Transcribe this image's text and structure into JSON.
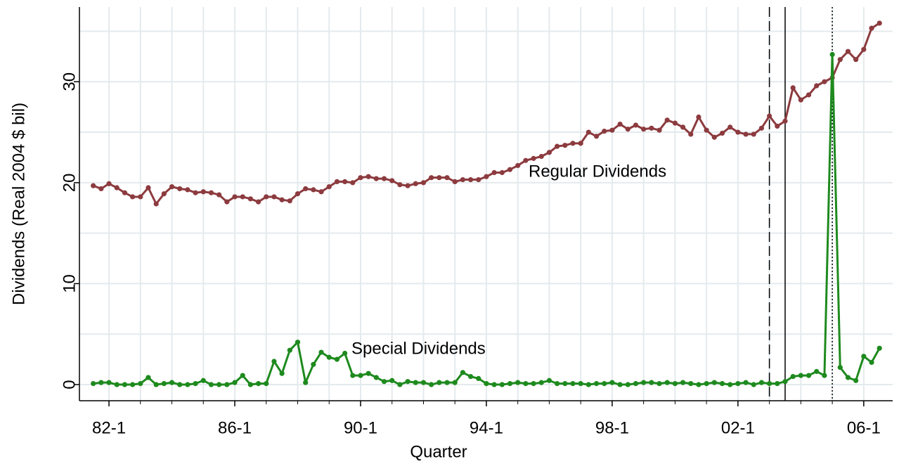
{
  "chart_data": {
    "type": "line",
    "x_label": "Quarter",
    "y_label": "Dividends (Real 2004 $ bil)",
    "x": [
      1981.5,
      1981.75,
      1982,
      1982.25,
      1982.5,
      1982.75,
      1983,
      1983.25,
      1983.5,
      1983.75,
      1984,
      1984.25,
      1984.5,
      1984.75,
      1985,
      1985.25,
      1985.5,
      1985.75,
      1986,
      1986.25,
      1986.5,
      1986.75,
      1987,
      1987.25,
      1987.5,
      1987.75,
      1988,
      1988.25,
      1988.5,
      1988.75,
      1989,
      1989.25,
      1989.5,
      1989.75,
      1990,
      1990.25,
      1990.5,
      1990.75,
      1991,
      1991.25,
      1991.5,
      1991.75,
      1992,
      1992.25,
      1992.5,
      1992.75,
      1993,
      1993.25,
      1993.5,
      1993.75,
      1994,
      1994.25,
      1994.5,
      1994.75,
      1995,
      1995.25,
      1995.5,
      1995.75,
      1996,
      1996.25,
      1996.5,
      1996.75,
      1997,
      1997.25,
      1997.5,
      1997.75,
      1998,
      1998.25,
      1998.5,
      1998.75,
      1999,
      1999.25,
      1999.5,
      1999.75,
      2000,
      2000.25,
      2000.5,
      2000.75,
      2001,
      2001.25,
      2001.5,
      2001.75,
      2002,
      2002.25,
      2002.5,
      2002.75,
      2003,
      2003.25,
      2003.5,
      2003.75,
      2004,
      2004.25,
      2004.5,
      2004.75,
      2005,
      2005.25,
      2005.5,
      2005.75,
      2006,
      2006.25,
      2006.5
    ],
    "series": [
      {
        "name": "Regular Dividends",
        "color": "#8c3b3f",
        "values": [
          19.7,
          19.4,
          19.9,
          19.5,
          19.0,
          18.6,
          18.6,
          19.5,
          17.9,
          18.9,
          19.6,
          19.4,
          19.3,
          19.0,
          19.1,
          19.0,
          18.8,
          18.1,
          18.6,
          18.6,
          18.4,
          18.1,
          18.6,
          18.6,
          18.3,
          18.2,
          18.9,
          19.4,
          19.3,
          19.1,
          19.6,
          20.1,
          20.1,
          20.0,
          20.5,
          20.6,
          20.4,
          20.4,
          20.2,
          19.8,
          19.7,
          19.9,
          20.0,
          20.5,
          20.5,
          20.5,
          20.1,
          20.3,
          20.3,
          20.3,
          20.6,
          21.0,
          21.0,
          21.3,
          21.7,
          22.2,
          22.4,
          22.6,
          23.0,
          23.6,
          23.7,
          23.9,
          23.9,
          25.0,
          24.6,
          25.1,
          25.2,
          25.8,
          25.3,
          25.7,
          25.3,
          25.4,
          25.2,
          26.2,
          25.9,
          25.5,
          24.8,
          26.5,
          25.2,
          24.5,
          24.9,
          25.5,
          25.0,
          24.8,
          24.8,
          25.4,
          26.6,
          25.6,
          26.1,
          29.4,
          28.2,
          28.7,
          29.6,
          30.0,
          30.4,
          32.2,
          33.0,
          32.2,
          33.2,
          35.3,
          35.8
        ]
      },
      {
        "name": "Special Dividends",
        "color": "#1e8a1e",
        "values": [
          0.1,
          0.2,
          0.2,
          0.0,
          0.0,
          0.0,
          0.1,
          0.7,
          0.0,
          0.1,
          0.2,
          0.0,
          0.0,
          0.1,
          0.4,
          0.0,
          0.0,
          0.0,
          0.2,
          0.9,
          0.0,
          0.1,
          0.1,
          2.3,
          1.1,
          3.4,
          4.2,
          0.2,
          2.0,
          3.2,
          2.7,
          2.5,
          3.1,
          0.9,
          0.9,
          1.1,
          0.7,
          0.3,
          0.4,
          0.0,
          0.3,
          0.2,
          0.2,
          0.0,
          0.2,
          0.2,
          0.2,
          1.2,
          0.8,
          0.6,
          0.1,
          0.0,
          0.0,
          0.1,
          0.2,
          0.1,
          0.1,
          0.2,
          0.4,
          0.1,
          0.1,
          0.1,
          0.1,
          0.0,
          0.1,
          0.1,
          0.2,
          0.0,
          0.0,
          0.1,
          0.2,
          0.2,
          0.1,
          0.2,
          0.1,
          0.2,
          0.1,
          0.0,
          0.1,
          0.2,
          0.1,
          0.0,
          0.1,
          0.2,
          0.0,
          0.2,
          0.1,
          0.1,
          0.3,
          0.8,
          0.9,
          0.9,
          1.3,
          0.9,
          32.7,
          1.7,
          0.7,
          0.4,
          2.8,
          2.2,
          3.6
        ]
      }
    ],
    "xlim": [
      1981.06,
      2006.92
    ],
    "ylim": [
      -1.6,
      37.4
    ],
    "xticks": [
      {
        "value": 1982,
        "label": "82-1"
      },
      {
        "value": 1986,
        "label": "86-1"
      },
      {
        "value": 1990,
        "label": "90-1"
      },
      {
        "value": 1994,
        "label": "94-1"
      },
      {
        "value": 1998,
        "label": "98-1"
      },
      {
        "value": 2002,
        "label": "02-1"
      },
      {
        "value": 2006,
        "label": "06-1"
      }
    ],
    "xminorticks": [
      1983,
      1984,
      1985,
      1987,
      1988,
      1989,
      1991,
      1992,
      1993,
      1995,
      1996,
      1997,
      1999,
      2000,
      2001,
      2003,
      2004,
      2005
    ],
    "yticks": [
      0,
      10,
      20,
      30
    ],
    "yminorticks": [
      5,
      15,
      25,
      35
    ],
    "grid": true,
    "reference_lines": [
      {
        "x": 2003,
        "style": "dashed"
      },
      {
        "x": 2003.5,
        "style": "solid"
      },
      {
        "x": 2005,
        "style": "dotted"
      }
    ]
  }
}
